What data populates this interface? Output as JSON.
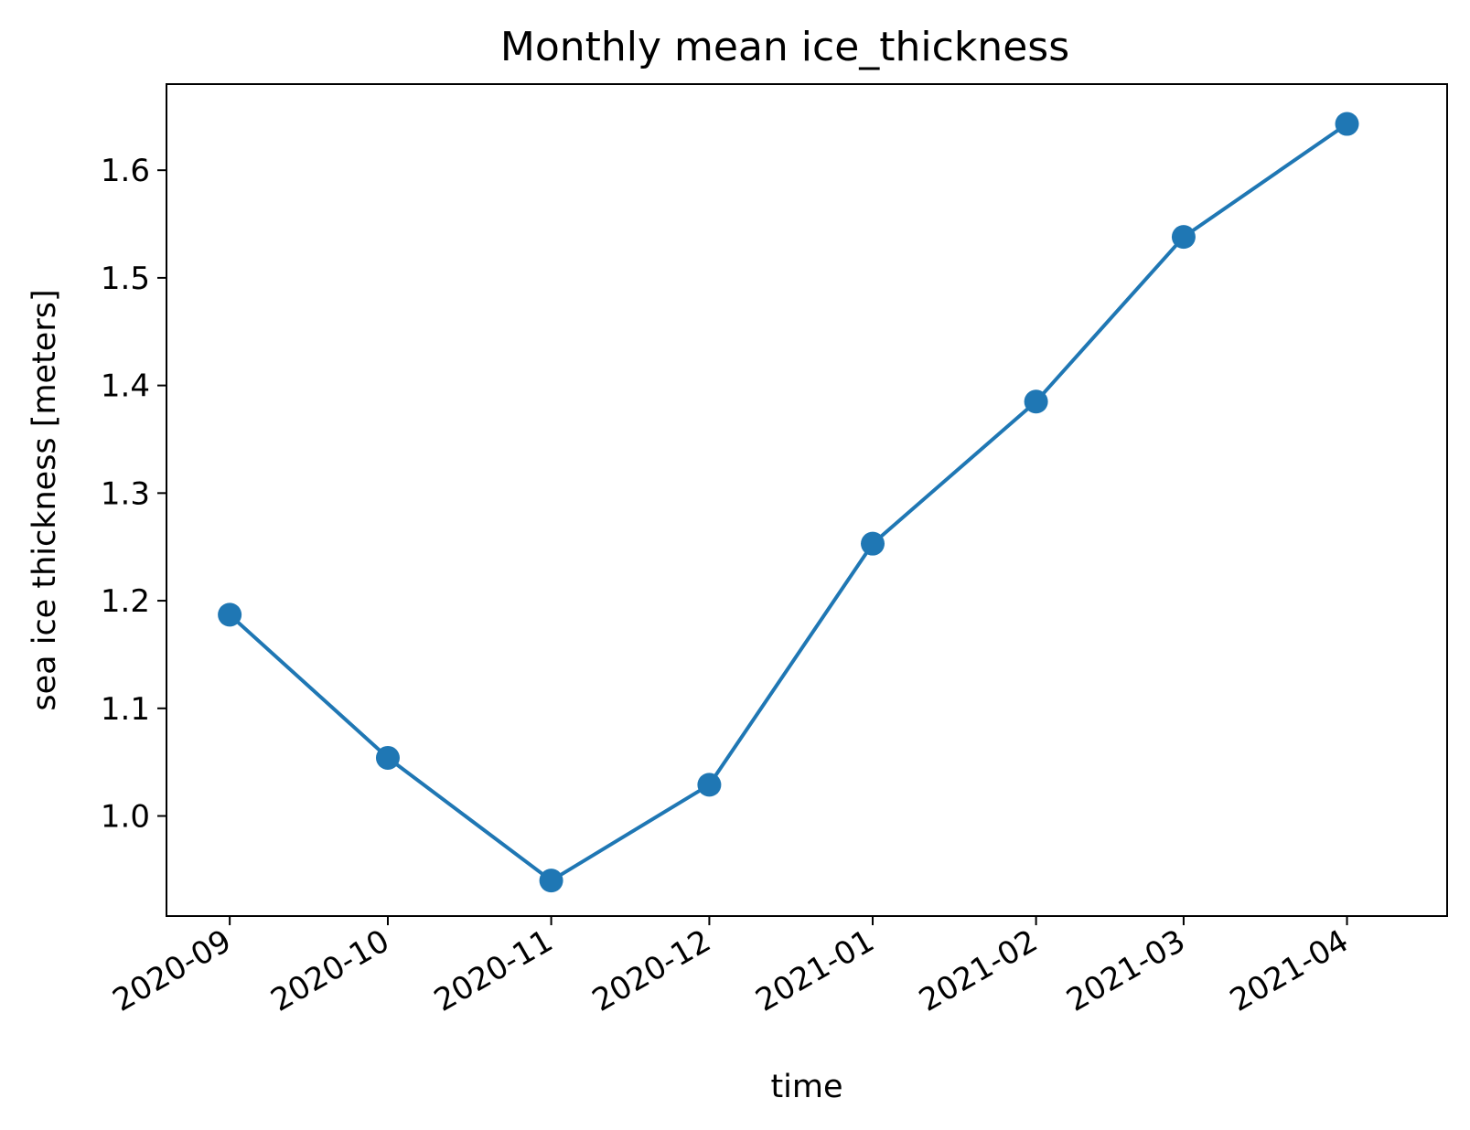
{
  "chart_data": {
    "type": "line",
    "title": "Monthly mean ice_thickness",
    "xlabel": "time",
    "ylabel": "sea ice thickness [meters]",
    "x": [
      "2020-09",
      "2020-10",
      "2020-11",
      "2020-12",
      "2021-01",
      "2021-02",
      "2021-03",
      "2021-04"
    ],
    "xlim": [
      "2020-08-20",
      "2021-04-20"
    ],
    "ylim": [
      0.907,
      1.68
    ],
    "yticks": [
      1.0,
      1.1,
      1.2,
      1.3,
      1.4,
      1.5,
      1.6
    ],
    "ytick_labels": [
      "1.0",
      "1.1",
      "1.2",
      "1.3",
      "1.4",
      "1.5",
      "1.6"
    ],
    "xtick_labels": [
      "2020-09",
      "2020-10",
      "2020-11",
      "2020-12",
      "2021-01",
      "2021-02",
      "2021-03",
      "2021-04"
    ],
    "series": [
      {
        "values": [
          1.187,
          1.054,
          0.94,
          1.029,
          1.253,
          1.385,
          1.538,
          1.643
        ],
        "color": "#1f77b4",
        "marker": "circle"
      }
    ],
    "grid": false,
    "legend": "none"
  }
}
